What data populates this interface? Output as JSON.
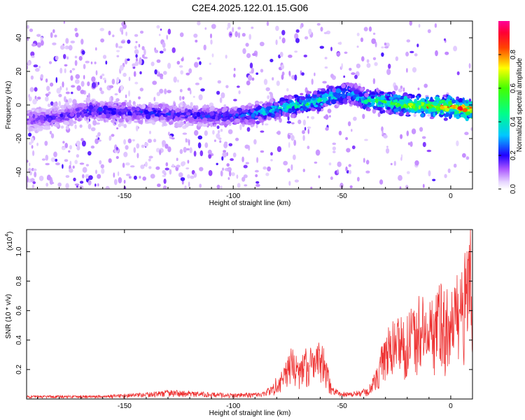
{
  "title": "C2E4.2025.122.01.15.G06",
  "chart_data": [
    {
      "type": "heatmap",
      "xlabel": "Height of straight line (km)",
      "ylabel": "Frequency (Hz)",
      "xlim": [
        -195,
        10
      ],
      "ylim": [
        -50,
        50
      ],
      "x_ticks": [
        -150,
        -100,
        -50,
        0
      ],
      "y_ticks": [
        -40,
        -20,
        0,
        20,
        40
      ],
      "colorbar": {
        "label": "Normalized spectral amplitude",
        "range": [
          0,
          1
        ],
        "ticks": [
          0.0,
          0.2,
          0.4,
          0.6,
          0.8
        ]
      },
      "ridge": {
        "x": [
          -195,
          -180,
          -165,
          -150,
          -135,
          -120,
          -105,
          -95,
          -85,
          -75,
          -65,
          -55,
          -48,
          -44,
          -40,
          -30,
          -20,
          -10,
          0,
          10
        ],
        "y": [
          -9,
          -7,
          -3,
          -4,
          -5,
          -6,
          -7,
          -6,
          -4,
          -1,
          1,
          5,
          7,
          6,
          3,
          2,
          0,
          -1,
          -1,
          -3
        ],
        "amplitude": [
          0.2,
          0.2,
          0.25,
          0.25,
          0.25,
          0.25,
          0.28,
          0.32,
          0.4,
          0.5,
          0.55,
          0.45,
          0.4,
          0.38,
          0.5,
          0.6,
          0.72,
          0.82,
          0.9,
          0.95
        ]
      }
    },
    {
      "type": "line",
      "xlabel": "Height of straight line (km)",
      "ylabel": "SNR (10 * v/v)",
      "multiplier_label": "(x10",
      "multiplier_exp": "4",
      "xlim": [
        -195,
        10
      ],
      "ylim": [
        0,
        1.15
      ],
      "x_ticks": [
        -150,
        -100,
        -50,
        0
      ],
      "y_ticks": [
        0.2,
        0.4,
        0.6,
        0.8,
        1.0
      ],
      "color": "#ee3333",
      "envelope": {
        "x": [
          -195,
          -160,
          -140,
          -130,
          -100,
          -86,
          -82,
          -78,
          -74,
          -70,
          -66,
          -62,
          -58,
          -55,
          -50,
          -45,
          -38,
          -33,
          -31,
          -28,
          -24,
          -20,
          -15,
          -10,
          -5,
          0,
          5,
          9,
          10
        ],
        "y": [
          0.02,
          0.02,
          0.035,
          0.05,
          0.03,
          0.04,
          0.08,
          0.18,
          0.28,
          0.25,
          0.28,
          0.32,
          0.28,
          0.08,
          0.04,
          0.04,
          0.06,
          0.2,
          0.35,
          0.4,
          0.5,
          0.45,
          0.6,
          0.52,
          0.65,
          0.58,
          0.75,
          0.95,
          0.6
        ]
      }
    }
  ]
}
